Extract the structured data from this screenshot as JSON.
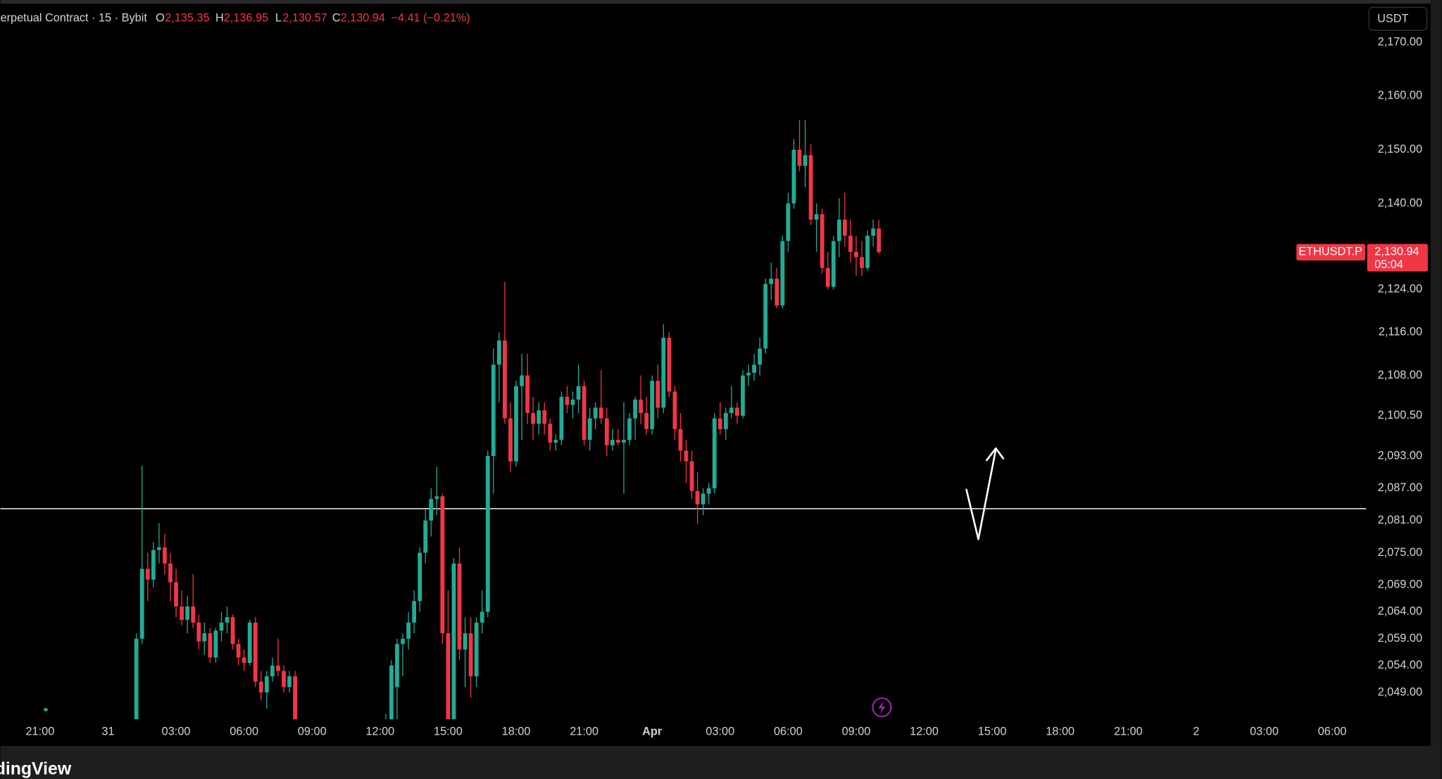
{
  "chart_data": {
    "type": "candlestick",
    "header": {
      "title": "erpetual Contract · 15 · Bybit",
      "o_label": "O",
      "o": "2,135.35",
      "h_label": "H",
      "h": "2,136.95",
      "l_label": "L",
      "l": "2,130.57",
      "c_label": "C",
      "c": "2,130.94",
      "change": "−4.41 (−0.21%)"
    },
    "currency": "USDT",
    "symbol": "ETHUSDT.P",
    "last_price": 2130.94,
    "last_price_label": "2,130.94",
    "countdown": "05:04",
    "brand": "dingView",
    "up_color": "#22ab94",
    "down_color": "#f23645",
    "horizontal_line": 2083.2,
    "xlim": [
      -1.75,
      58.5
    ],
    "ylim": [
      2044,
      2176.5
    ],
    "xticks": [
      {
        "value": 0,
        "label": "21:00"
      },
      {
        "value": 3,
        "label": "31"
      },
      {
        "value": 6,
        "label": "03:00"
      },
      {
        "value": 9,
        "label": "06:00"
      },
      {
        "value": 12,
        "label": "09:00"
      },
      {
        "value": 15,
        "label": "12:00"
      },
      {
        "value": 18,
        "label": "15:00"
      },
      {
        "value": 21,
        "label": "18:00"
      },
      {
        "value": 24,
        "label": "21:00"
      },
      {
        "value": 27,
        "label": "Apr"
      },
      {
        "value": 30,
        "label": "03:00"
      },
      {
        "value": 33,
        "label": "06:00"
      },
      {
        "value": 36,
        "label": "09:00"
      },
      {
        "value": 39,
        "label": "12:00"
      },
      {
        "value": 42,
        "label": "15:00"
      },
      {
        "value": 45,
        "label": "18:00"
      },
      {
        "value": 48,
        "label": "21:00"
      },
      {
        "value": 51,
        "label": "2"
      },
      {
        "value": 54,
        "label": "03:00"
      },
      {
        "value": 57,
        "label": "06:00"
      }
    ],
    "yticks": [
      {
        "value": 2170,
        "label": "2,170.00"
      },
      {
        "value": 2160,
        "label": "2,160.00"
      },
      {
        "value": 2150,
        "label": "2,150.00"
      },
      {
        "value": 2140,
        "label": "2,140.00"
      },
      {
        "value": 2124,
        "label": "2,124.00"
      },
      {
        "value": 2116,
        "label": "2,116.00"
      },
      {
        "value": 2108,
        "label": "2,108.00"
      },
      {
        "value": 2100.5,
        "label": "2,100.50"
      },
      {
        "value": 2093,
        "label": "2,093.00"
      },
      {
        "value": 2087,
        "label": "2,087.00"
      },
      {
        "value": 2081,
        "label": "2,081.00"
      },
      {
        "value": 2075,
        "label": "2,075.00"
      },
      {
        "value": 2069,
        "label": "2,069.00"
      },
      {
        "value": 2064,
        "label": "2,064.00"
      },
      {
        "value": 2059,
        "label": "2,059.00"
      },
      {
        "value": 2054,
        "label": "2,054.00"
      },
      {
        "value": 2049,
        "label": "2,049.00"
      }
    ],
    "ohlc": [
      [
        0.25,
        2045.6,
        2046.2,
        2045.3,
        2046.0
      ],
      [
        4.25,
        2042,
        2060,
        2040,
        2059
      ],
      [
        4.5,
        2059,
        2091.2,
        2058,
        2072
      ],
      [
        4.75,
        2072,
        2075,
        2066,
        2070
      ],
      [
        5.0,
        2070,
        2077,
        2068.5,
        2075.5
      ],
      [
        5.25,
        2075.5,
        2080.5,
        2073,
        2076
      ],
      [
        5.5,
        2076,
        2078.5,
        2071,
        2073
      ],
      [
        5.75,
        2073,
        2075,
        2066,
        2069.5
      ],
      [
        6.0,
        2069.5,
        2072,
        2063,
        2065
      ],
      [
        6.25,
        2065,
        2068,
        2061.5,
        2062.5
      ],
      [
        6.5,
        2062.5,
        2067,
        2060,
        2065
      ],
      [
        6.75,
        2065,
        2071,
        2061,
        2062
      ],
      [
        7.0,
        2062,
        2063.5,
        2057,
        2058.5
      ],
      [
        7.25,
        2058.5,
        2062,
        2056,
        2060
      ],
      [
        7.5,
        2060,
        2061,
        2054.5,
        2055.5
      ],
      [
        7.75,
        2055.5,
        2061,
        2054.5,
        2060.5
      ],
      [
        8.0,
        2060.5,
        2064,
        2058.5,
        2062
      ],
      [
        8.25,
        2062,
        2065,
        2060,
        2063
      ],
      [
        8.5,
        2063,
        2063.5,
        2057,
        2058
      ],
      [
        8.75,
        2058,
        2059,
        2054,
        2055.5
      ],
      [
        9.0,
        2055.5,
        2057,
        2053,
        2054.5
      ],
      [
        9.25,
        2054.5,
        2062.5,
        2054,
        2062
      ],
      [
        9.5,
        2062,
        2063,
        2050,
        2051
      ],
      [
        9.75,
        2051,
        2053,
        2047.5,
        2049
      ],
      [
        10.0,
        2049,
        2053,
        2046,
        2052
      ],
      [
        10.25,
        2052,
        2055.5,
        2051,
        2054
      ],
      [
        10.5,
        2054,
        2059,
        2052,
        2053
      ],
      [
        10.75,
        2053,
        2054,
        2049,
        2050
      ],
      [
        11.0,
        2050,
        2053,
        2049,
        2052
      ],
      [
        11.25,
        2052,
        2053,
        2040,
        2042
      ],
      [
        15.25,
        2041,
        2045,
        2040,
        2044
      ],
      [
        15.5,
        2040,
        2055,
        2039,
        2054
      ],
      [
        15.75,
        2050,
        2059,
        2044,
        2058
      ],
      [
        16.0,
        2058,
        2060,
        2052,
        2059
      ],
      [
        16.25,
        2059,
        2064,
        2057,
        2062
      ],
      [
        16.5,
        2062,
        2068,
        2060,
        2066
      ],
      [
        16.75,
        2066,
        2076,
        2064,
        2075
      ],
      [
        17.0,
        2075,
        2083,
        2073,
        2081
      ],
      [
        17.25,
        2081,
        2087,
        2078,
        2085
      ],
      [
        17.5,
        2085,
        2091,
        2082,
        2085.5
      ],
      [
        17.75,
        2085.5,
        2086,
        2058,
        2060
      ],
      [
        18.0,
        2060,
        2068,
        2042,
        2044
      ],
      [
        18.25,
        2044,
        2074,
        2043,
        2073
      ],
      [
        18.5,
        2073,
        2076,
        2055,
        2057
      ],
      [
        18.75,
        2057,
        2063,
        2050,
        2060
      ],
      [
        19.0,
        2060,
        2063,
        2048,
        2052
      ],
      [
        19.25,
        2052,
        2063,
        2050,
        2062
      ],
      [
        19.5,
        2062,
        2068,
        2060,
        2064
      ],
      [
        19.75,
        2064,
        2094,
        2063,
        2093
      ],
      [
        20.0,
        2093,
        2113,
        2086,
        2110
      ],
      [
        20.25,
        2110,
        2116,
        2103,
        2114.5
      ],
      [
        20.5,
        2114.5,
        2125.4,
        2099,
        2100
      ],
      [
        20.75,
        2100,
        2103,
        2090,
        2092
      ],
      [
        21.0,
        2092,
        2107,
        2091,
        2106
      ],
      [
        21.25,
        2106,
        2112,
        2096,
        2108
      ],
      [
        21.5,
        2108,
        2112,
        2099,
        2101
      ],
      [
        21.75,
        2101,
        2104,
        2096,
        2099
      ],
      [
        22.0,
        2099,
        2103,
        2097,
        2101.5
      ],
      [
        22.25,
        2101.5,
        2103,
        2097,
        2099
      ],
      [
        22.5,
        2099,
        2100,
        2094,
        2095.5
      ],
      [
        22.75,
        2095.5,
        2097,
        2094,
        2096
      ],
      [
        23.0,
        2096,
        2105,
        2095,
        2104
      ],
      [
        23.25,
        2104,
        2106,
        2101,
        2102.5
      ],
      [
        23.5,
        2102.5,
        2105,
        2100,
        2103.5
      ],
      [
        23.75,
        2103.5,
        2110,
        2101,
        2106
      ],
      [
        24.0,
        2106,
        2107,
        2095,
        2096
      ],
      [
        24.25,
        2096,
        2102,
        2094,
        2100
      ],
      [
        24.5,
        2100,
        2103,
        2098,
        2102
      ],
      [
        24.75,
        2102,
        2109,
        2099,
        2100
      ],
      [
        25.0,
        2100,
        2102,
        2093,
        2095
      ],
      [
        25.25,
        2095,
        2098,
        2094,
        2096
      ],
      [
        25.5,
        2096,
        2098,
        2095,
        2095.5
      ],
      [
        25.75,
        2095.5,
        2103,
        2086,
        2096
      ],
      [
        26.0,
        2096,
        2101,
        2095,
        2100
      ],
      [
        26.25,
        2100,
        2104,
        2096,
        2103.5
      ],
      [
        26.5,
        2103.5,
        2108,
        2099,
        2101
      ],
      [
        26.75,
        2101,
        2104,
        2097,
        2098
      ],
      [
        27.0,
        2098,
        2108,
        2097,
        2107
      ],
      [
        27.25,
        2107,
        2110,
        2100,
        2102
      ],
      [
        27.5,
        2102,
        2117.5,
        2101,
        2115
      ],
      [
        27.75,
        2115,
        2116,
        2104,
        2105
      ],
      [
        28.0,
        2105,
        2106,
        2096,
        2098
      ],
      [
        28.25,
        2098,
        2101,
        2092,
        2094
      ],
      [
        28.5,
        2094,
        2096,
        2088,
        2092
      ],
      [
        28.75,
        2092,
        2094,
        2085,
        2086.5
      ],
      [
        29.0,
        2086.5,
        2090,
        2080.3,
        2084
      ],
      [
        29.25,
        2084,
        2087,
        2082,
        2086
      ],
      [
        29.5,
        2086,
        2088,
        2084,
        2087
      ],
      [
        29.75,
        2087,
        2101,
        2086,
        2100
      ],
      [
        30.0,
        2100,
        2103,
        2097,
        2098
      ],
      [
        30.25,
        2098,
        2102,
        2096,
        2101
      ],
      [
        30.5,
        2101,
        2106,
        2100,
        2102
      ],
      [
        30.75,
        2102,
        2103,
        2099,
        2100.5
      ],
      [
        31.0,
        2100.5,
        2109,
        2100,
        2108
      ],
      [
        31.25,
        2108,
        2110,
        2106,
        2108.5
      ],
      [
        31.5,
        2108.5,
        2112,
        2107,
        2110
      ],
      [
        31.75,
        2110,
        2115,
        2108,
        2113
      ],
      [
        32.0,
        2113,
        2126,
        2112,
        2125
      ],
      [
        32.25,
        2125,
        2129,
        2122,
        2126
      ],
      [
        32.5,
        2126,
        2128,
        2120.5,
        2121
      ],
      [
        32.75,
        2121,
        2134,
        2120.5,
        2133
      ],
      [
        33.0,
        2133,
        2142,
        2131,
        2140
      ],
      [
        33.25,
        2140,
        2152,
        2139,
        2150
      ],
      [
        33.5,
        2150,
        2155.5,
        2146,
        2147
      ],
      [
        33.75,
        2147,
        2155.5,
        2143,
        2149
      ],
      [
        34.0,
        2149,
        2151,
        2136,
        2137
      ],
      [
        34.25,
        2137,
        2140,
        2131,
        2138
      ],
      [
        34.5,
        2138,
        2139,
        2127,
        2128
      ],
      [
        34.75,
        2128,
        2131,
        2124,
        2124.5
      ],
      [
        35.0,
        2124.5,
        2134,
        2124,
        2133
      ],
      [
        35.25,
        2133,
        2141,
        2130,
        2137
      ],
      [
        35.5,
        2137,
        2142,
        2132,
        2134
      ],
      [
        35.75,
        2134,
        2137,
        2129,
        2131
      ],
      [
        36.0,
        2131,
        2134,
        2126.5,
        2130
      ],
      [
        36.25,
        2130,
        2133,
        2126.5,
        2128
      ],
      [
        36.5,
        2128,
        2135,
        2127.5,
        2134
      ],
      [
        36.75,
        2134,
        2137,
        2132,
        2135.35
      ],
      [
        37.0,
        2135.35,
        2136.95,
        2130.57,
        2130.94
      ]
    ]
  }
}
